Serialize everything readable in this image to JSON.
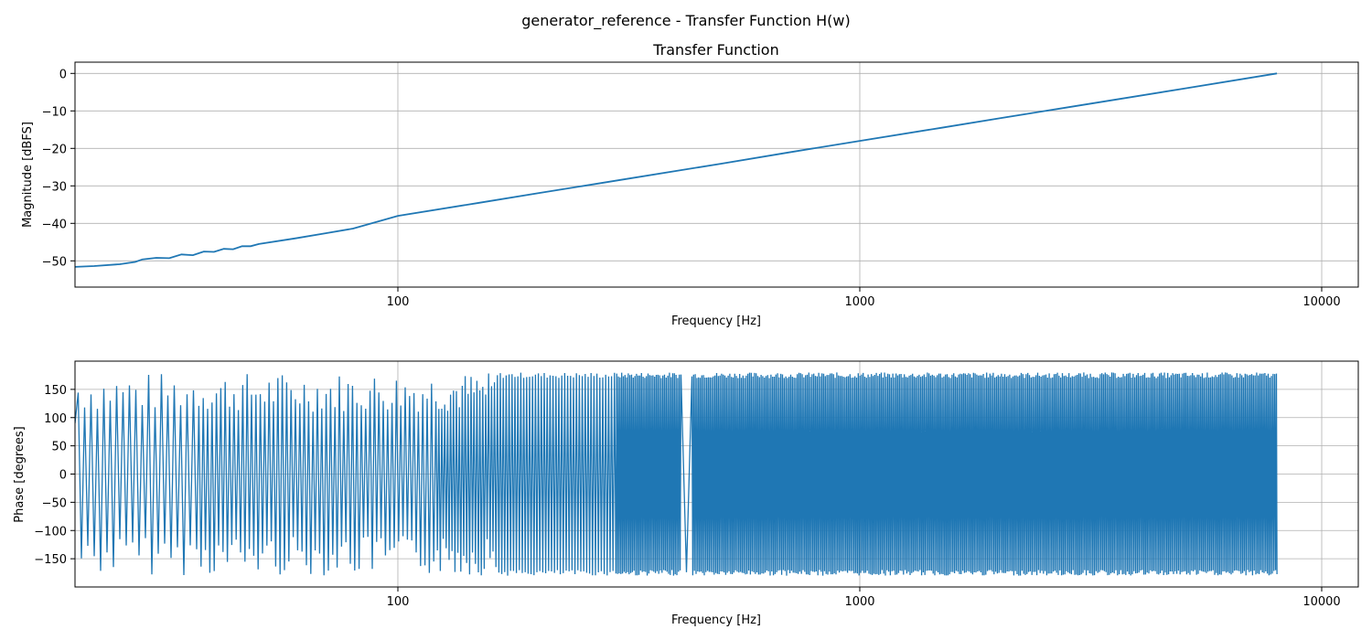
{
  "figure": {
    "suptitle": "generator_reference - Transfer Function H(w)"
  },
  "chart_data": [
    {
      "type": "line",
      "title": "Transfer Function",
      "xlabel": "Frequency [Hz]",
      "ylabel": "Magnitude [dBFS]",
      "xscale": "log",
      "xlim": [
        20,
        12000
      ],
      "ylim": [
        -57,
        3
      ],
      "xticks": [
        100,
        1000,
        10000
      ],
      "xtick_labels": [
        "100",
        "1000",
        "10000"
      ],
      "yticks": [
        0,
        -10,
        -20,
        -30,
        -40,
        -50
      ],
      "ytick_labels": [
        "0",
        "−10",
        "−20",
        "−30",
        "−40",
        "−50"
      ],
      "grid": true,
      "series": [
        {
          "color": "#1f77b4",
          "x": [
            20,
            22,
            25,
            27,
            28,
            30,
            32,
            34,
            36,
            38,
            40,
            42,
            44,
            46,
            48,
            50,
            60,
            70,
            80,
            100,
            150,
            200,
            300,
            500,
            700,
            1000,
            1500,
            2000,
            3000,
            5000,
            8000
          ],
          "y": [
            -51.6,
            -51.4,
            -50.9,
            -50.3,
            -49.6,
            -49.2,
            -49.3,
            -48.3,
            -48.5,
            -47.5,
            -47.6,
            -46.8,
            -46.9,
            -46.1,
            -46.1,
            -45.5,
            -44.0,
            -42.6,
            -41.4,
            -38.0,
            -34.5,
            -32.0,
            -28.5,
            -24.1,
            -21.1,
            -18.0,
            -14.5,
            -12.0,
            -8.5,
            -4.1,
            0.0
          ]
        }
      ]
    },
    {
      "type": "line",
      "title": "",
      "xlabel": "Frequency [Hz]",
      "ylabel": "Phase [degrees]",
      "xscale": "log",
      "xlim": [
        20,
        12000
      ],
      "ylim": [
        -200,
        200
      ],
      "xticks": [
        100,
        1000,
        10000
      ],
      "xtick_labels": [
        "100",
        "1000",
        "10000"
      ],
      "yticks": [
        150,
        100,
        50,
        0,
        -50,
        -100,
        -150
      ],
      "ytick_labels": [
        "150",
        "100",
        "50",
        "0",
        "−50",
        "−100",
        "−150"
      ],
      "grid": true,
      "series": [
        {
          "color": "#1f77b4",
          "x_range": [
            20,
            8000
          ],
          "y_range": [
            -180,
            180
          ],
          "notes_visible": "phase wraps between -180 and 180 degrees across the full band"
        }
      ]
    }
  ]
}
